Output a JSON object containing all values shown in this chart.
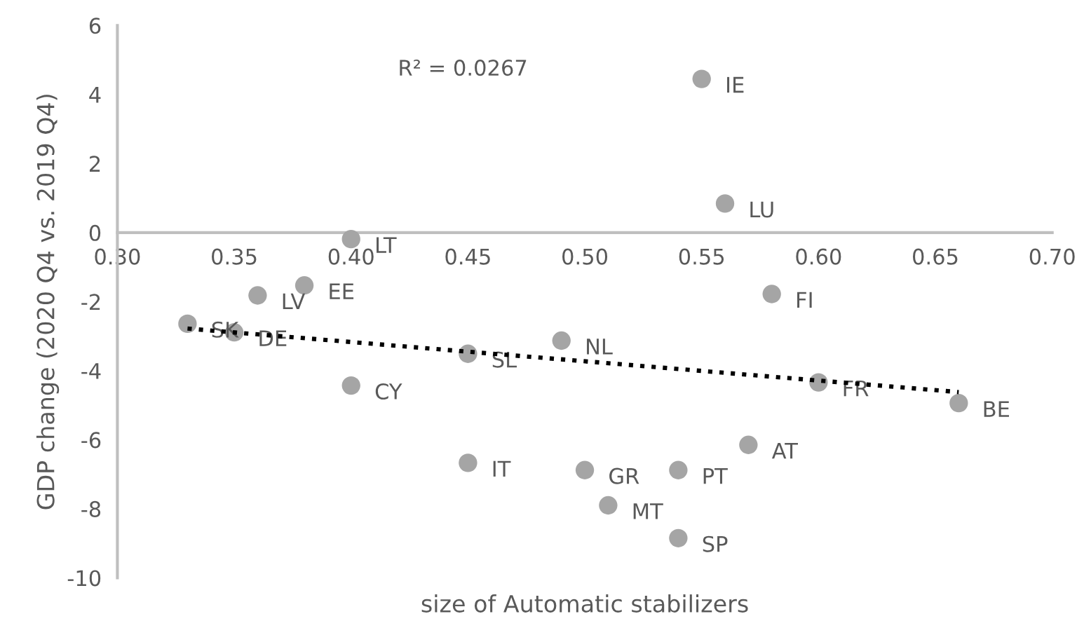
{
  "chart_data": {
    "type": "scatter",
    "xlabel": "size of Automatic stabilizers",
    "ylabel": "GDP change (2020 Q4 vs. 2019 Q4)",
    "xlim": [
      0.3,
      0.7
    ],
    "xticks": [
      {
        "value": 0.3,
        "label": "0.30"
      },
      {
        "value": 0.35,
        "label": "0.35"
      },
      {
        "value": 0.4,
        "label": "0.40"
      },
      {
        "value": 0.45,
        "label": "0.45"
      },
      {
        "value": 0.5,
        "label": "0.50"
      },
      {
        "value": 0.55,
        "label": "0.55"
      },
      {
        "value": 0.6,
        "label": "0.60"
      },
      {
        "value": 0.65,
        "label": "0.65"
      },
      {
        "value": 0.7,
        "label": "0.70"
      }
    ],
    "ylim": [
      -10,
      6
    ],
    "yticks": [
      -10,
      -8,
      -6,
      -4,
      -2,
      0,
      2,
      4,
      6
    ],
    "series": [
      {
        "color": "#a5a5a5",
        "marker": "circle",
        "x": [
          0.55,
          0.56,
          0.4,
          0.38,
          0.36,
          0.58,
          0.33,
          0.35,
          0.49,
          0.45,
          0.4,
          0.6,
          0.66,
          0.57,
          0.45,
          0.5,
          0.54,
          0.51,
          0.54
        ],
        "values": [
          4.45,
          0.84,
          -0.19,
          -1.53,
          -1.82,
          -1.78,
          -2.64,
          -2.89,
          -3.13,
          -3.51,
          -4.43,
          -4.34,
          -4.94,
          -6.15,
          -6.67,
          -6.88,
          -6.88,
          -7.9,
          -8.85
        ]
      },
      {
        "type": "line",
        "color": "#000000",
        "line_style": "dotted",
        "marker": "none",
        "x": [
          0.33,
          0.66
        ],
        "values": [
          -2.78,
          -4.62
        ]
      }
    ],
    "annotations": [
      "R² = 0.0267",
      {
        "text": "IE",
        "x": 0.55,
        "y": 4.45
      },
      {
        "text": "LU",
        "x": 0.56,
        "y": 0.84
      },
      {
        "text": "LT",
        "x": 0.4,
        "y": -0.19
      },
      {
        "text": "EE",
        "x": 0.38,
        "y": -1.53
      },
      {
        "text": "LV",
        "x": 0.36,
        "y": -1.82
      },
      {
        "text": "FI",
        "x": 0.58,
        "y": -1.78
      },
      {
        "text": "SK",
        "x": 0.33,
        "y": -2.64
      },
      {
        "text": "DE",
        "x": 0.35,
        "y": -2.89
      },
      {
        "text": "NL",
        "x": 0.49,
        "y": -3.13
      },
      {
        "text": "SL",
        "x": 0.45,
        "y": -3.51
      },
      {
        "text": "CY",
        "x": 0.4,
        "y": -4.43
      },
      {
        "text": "FR",
        "x": 0.6,
        "y": -4.34
      },
      {
        "text": "BE",
        "x": 0.66,
        "y": -4.94
      },
      {
        "text": "AT",
        "x": 0.57,
        "y": -6.15
      },
      {
        "text": "IT",
        "x": 0.45,
        "y": -6.67
      },
      {
        "text": "GR",
        "x": 0.5,
        "y": -6.88
      },
      {
        "text": "PT",
        "x": 0.54,
        "y": -6.88
      },
      {
        "text": "MT",
        "x": 0.51,
        "y": -7.9
      },
      {
        "text": "SP",
        "x": 0.54,
        "y": -8.85
      }
    ]
  }
}
